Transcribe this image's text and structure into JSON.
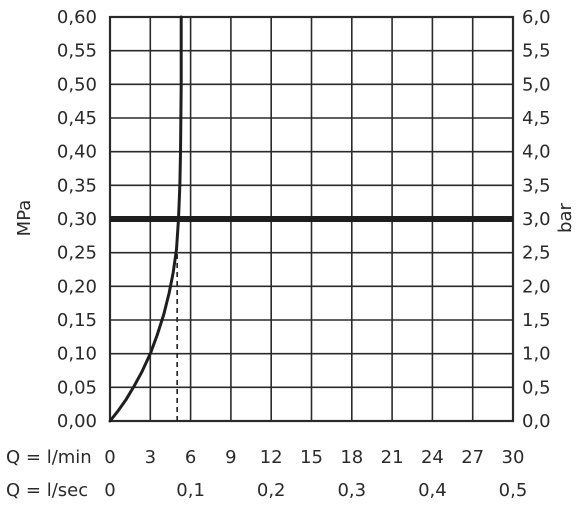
{
  "chart_data": {
    "type": "line",
    "title": "",
    "grid": true,
    "left_axis": {
      "label": "MPa",
      "range": [
        0,
        0.6
      ],
      "ticks": [
        "0,00",
        "0,05",
        "0,10",
        "0,15",
        "0,20",
        "0,25",
        "0,30",
        "0,35",
        "0,40",
        "0,45",
        "0,50",
        "0,55",
        "0,60"
      ]
    },
    "right_axis": {
      "label": "bar",
      "range": [
        0,
        6
      ],
      "ticks": [
        "0,0",
        "0,5",
        "1,0",
        "1,5",
        "2,0",
        "2,5",
        "3,0",
        "3,5",
        "4,0",
        "4,5",
        "5,0",
        "5,5",
        "6,0"
      ]
    },
    "x_axis": {
      "label": "Q = l/min",
      "range": [
        0,
        30
      ],
      "ticks": [
        "0",
        "3",
        "6",
        "9",
        "12",
        "15",
        "18",
        "21",
        "24",
        "27",
        "30"
      ]
    },
    "x_axis_secondary": {
      "label": "Q = l/sec",
      "ticks": [
        {
          "label": "0",
          "value": 0
        },
        {
          "label": "0,1",
          "value": 6
        },
        {
          "label": "0,2",
          "value": 12
        },
        {
          "label": "0,3",
          "value": 18
        },
        {
          "label": "0,4",
          "value": 24
        },
        {
          "label": "0,5",
          "value": 30
        }
      ]
    },
    "series": [
      {
        "x": [
          0,
          0.6,
          1.2,
          1.8,
          2.4,
          3.0,
          3.5,
          4.0,
          4.4,
          4.7,
          4.95,
          5.1,
          5.2,
          5.25,
          5.3,
          5.3
        ],
        "y": [
          0.0,
          0.015,
          0.032,
          0.052,
          0.074,
          0.1,
          0.127,
          0.158,
          0.19,
          0.22,
          0.255,
          0.3,
          0.35,
          0.4,
          0.5,
          0.6
        ]
      }
    ],
    "reference_line": {
      "y": 0.3
    },
    "dropline": {
      "x": 5,
      "y_from": 0.0,
      "y_to": 0.27
    }
  },
  "labels": {
    "left_axis_title": "MPa",
    "right_axis_title": "bar",
    "xrow1_label": "Q = l/min",
    "xrow2_label": "Q = l/sec"
  },
  "colors": {
    "curve": "#1e1e1e",
    "reference_line": "#1e1e1e",
    "grid": "#2a2a2a",
    "text": "#2a2a2a"
  }
}
